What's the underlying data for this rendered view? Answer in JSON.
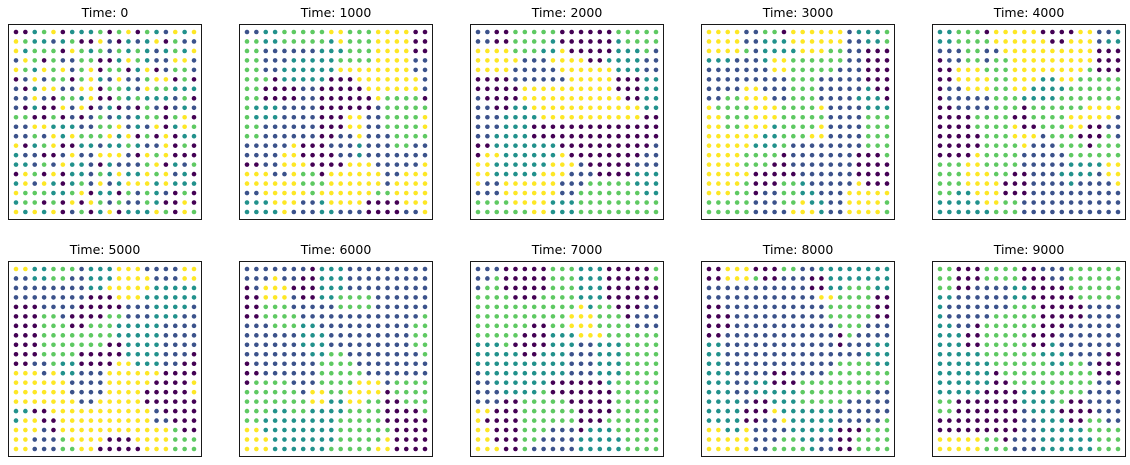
{
  "chart_data": [
    {
      "type": "scatter",
      "title": "Time: 0",
      "grid_size": [
        20,
        20
      ],
      "axes_visible": false,
      "color_levels": [
        "#440154",
        "#3b528b",
        "#21918c",
        "#5ec962",
        "#fde725"
      ]
    },
    {
      "type": "scatter",
      "title": "Time: 1000",
      "grid_size": [
        20,
        20
      ],
      "axes_visible": false,
      "color_levels": [
        "#440154",
        "#3b528b",
        "#21918c",
        "#5ec962",
        "#fde725"
      ]
    },
    {
      "type": "scatter",
      "title": "Time: 2000",
      "grid_size": [
        20,
        20
      ],
      "axes_visible": false,
      "color_levels": [
        "#440154",
        "#3b528b",
        "#21918c",
        "#5ec962",
        "#fde725"
      ]
    },
    {
      "type": "scatter",
      "title": "Time: 3000",
      "grid_size": [
        20,
        20
      ],
      "axes_visible": false,
      "color_levels": [
        "#440154",
        "#3b528b",
        "#21918c",
        "#5ec962",
        "#fde725"
      ]
    },
    {
      "type": "scatter",
      "title": "Time: 4000",
      "grid_size": [
        20,
        20
      ],
      "axes_visible": false,
      "color_levels": [
        "#440154",
        "#3b528b",
        "#21918c",
        "#5ec962",
        "#fde725"
      ]
    },
    {
      "type": "scatter",
      "title": "Time: 5000",
      "grid_size": [
        20,
        20
      ],
      "axes_visible": false,
      "color_levels": [
        "#440154",
        "#3b528b",
        "#21918c",
        "#5ec962",
        "#fde725"
      ]
    },
    {
      "type": "scatter",
      "title": "Time: 6000",
      "grid_size": [
        20,
        20
      ],
      "axes_visible": false,
      "color_levels": [
        "#440154",
        "#3b528b",
        "#21918c",
        "#5ec962",
        "#fde725"
      ]
    },
    {
      "type": "scatter",
      "title": "Time: 7000",
      "grid_size": [
        20,
        20
      ],
      "axes_visible": false,
      "color_levels": [
        "#440154",
        "#3b528b",
        "#21918c",
        "#5ec962",
        "#fde725"
      ]
    },
    {
      "type": "scatter",
      "title": "Time: 8000",
      "grid_size": [
        20,
        20
      ],
      "axes_visible": false,
      "color_levels": [
        "#440154",
        "#3b528b",
        "#21918c",
        "#5ec962",
        "#fde725"
      ]
    },
    {
      "type": "scatter",
      "title": "Time: 9000",
      "grid_size": [
        20,
        20
      ],
      "axes_visible": false,
      "color_levels": [
        "#440154",
        "#3b528b",
        "#21918c",
        "#5ec962",
        "#fde725"
      ]
    }
  ]
}
